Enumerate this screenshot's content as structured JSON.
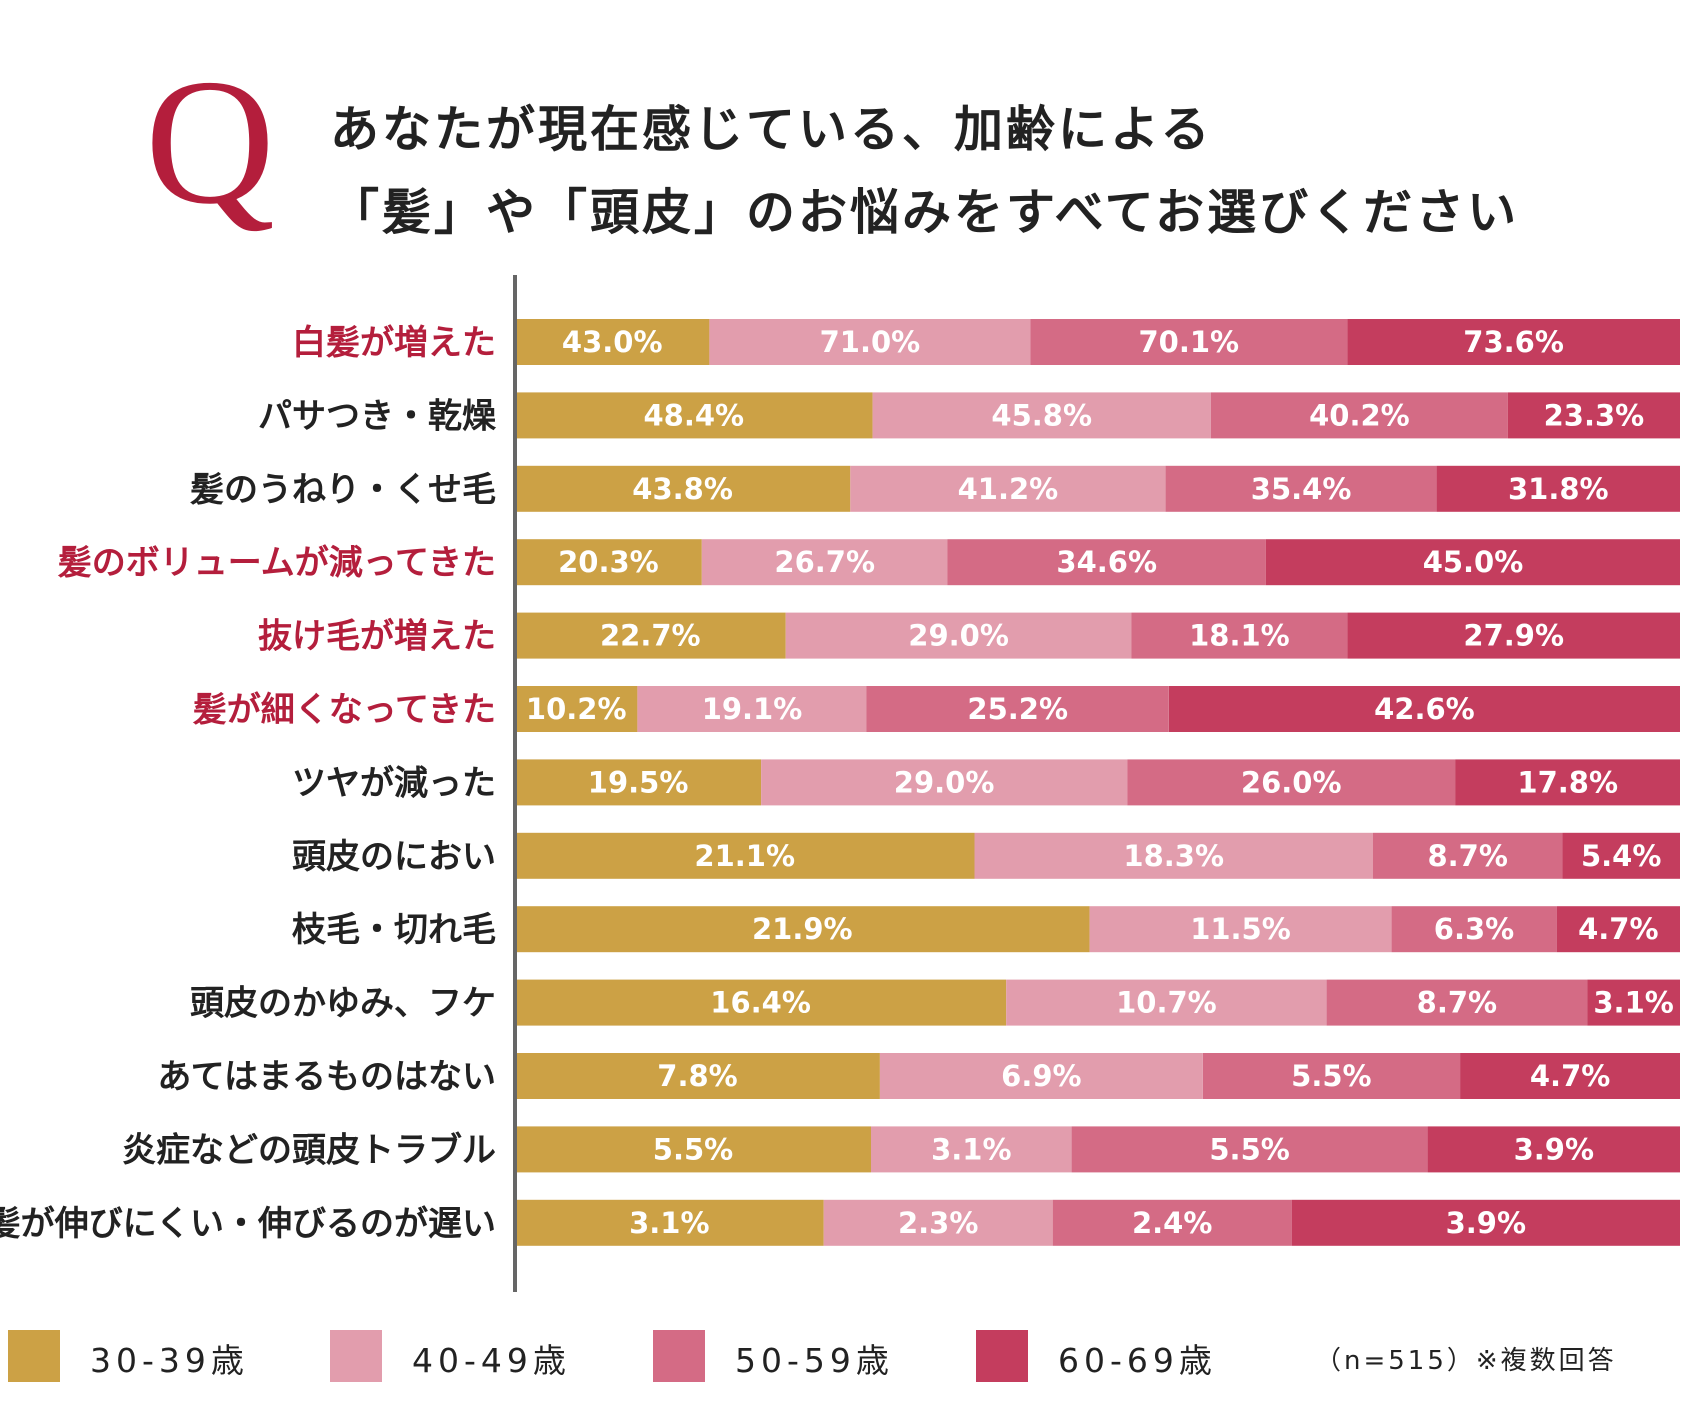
{
  "title": {
    "q": "Q",
    "line1": "あなたが現在感じている、加齢による",
    "line2": "「髪」や「頭皮」のお悩みをすべてお選びください"
  },
  "colors": {
    "accent": "#b41e3c",
    "text": "#222222",
    "series": [
      "#cca145",
      "#e29dad",
      "#d46b85",
      "#c43d5e"
    ]
  },
  "chart_data": {
    "type": "bar",
    "orientation": "horizontal",
    "stacked": true,
    "categories": [
      "白髪が増えた",
      "パサつき・乾燥",
      "髪のうねり・くせ毛",
      "髪のボリュームが減ってきた",
      "抜け毛が増えた",
      "髪が細くなってきた",
      "ツヤが減った",
      "頭皮のにおい",
      "枝毛・切れ毛",
      "頭皮のかゆみ、フケ",
      "あてはまるものはない",
      "炎症などの頭皮トラブル",
      "髪が伸びにくい・伸びるのが遅い"
    ],
    "highlighted": [
      true,
      false,
      false,
      true,
      true,
      true,
      false,
      false,
      false,
      false,
      false,
      false,
      false
    ],
    "series": [
      {
        "name": "30-39歳",
        "values": [
          43.0,
          48.4,
          43.8,
          20.3,
          22.7,
          10.2,
          19.5,
          21.1,
          21.9,
          16.4,
          7.8,
          5.5,
          3.1
        ]
      },
      {
        "name": "40-49歳",
        "values": [
          71.0,
          45.8,
          41.2,
          26.7,
          29.0,
          19.1,
          29.0,
          18.3,
          11.5,
          10.7,
          6.9,
          3.1,
          2.3
        ]
      },
      {
        "name": "50-59歳",
        "values": [
          70.1,
          40.2,
          35.4,
          34.6,
          18.1,
          25.2,
          26.0,
          8.7,
          6.3,
          8.7,
          5.5,
          5.5,
          2.4
        ]
      },
      {
        "name": "60-69歳",
        "values": [
          73.6,
          23.3,
          31.8,
          45.0,
          27.9,
          42.6,
          17.8,
          5.4,
          4.7,
          3.1,
          4.7,
          3.9,
          3.9
        ]
      }
    ],
    "labels": [
      [
        "43.0%",
        "71.0%",
        "70.1%",
        "73.6%"
      ],
      [
        "48.4%",
        "45.8%",
        "40.2%",
        "23.3%"
      ],
      [
        "43.8%",
        "41.2%",
        "35.4%",
        "31.8%"
      ],
      [
        "20.3%",
        "26.7%",
        "34.6%",
        "45.0%"
      ],
      [
        "22.7%",
        "29.0%",
        "18.1%",
        "27.9%"
      ],
      [
        "10.2%",
        "19.1%",
        "25.2%",
        "42.6%"
      ],
      [
        "19.5%",
        "29.0%",
        "26.0%",
        "17.8%"
      ],
      [
        "21.1%",
        "18.3%",
        "8.7%",
        "5.4%"
      ],
      [
        "21.9%",
        "11.5%",
        "6.3%",
        "4.7%"
      ],
      [
        "16.4%",
        "10.7%",
        "8.7%",
        "3.1%"
      ],
      [
        "7.8%",
        "6.9%",
        "5.5%",
        "4.7%"
      ],
      [
        "5.5%",
        "3.1%",
        "5.5%",
        "3.9%"
      ],
      [
        "3.1%",
        "2.3%",
        "2.4%",
        "3.9%"
      ]
    ],
    "normalized": true,
    "legend_position": "bottom"
  },
  "legend": {
    "items": [
      "30-39歳",
      "40-49歳",
      "50-59歳",
      "60-69歳"
    ]
  },
  "note": "（n=515）※複数回答"
}
